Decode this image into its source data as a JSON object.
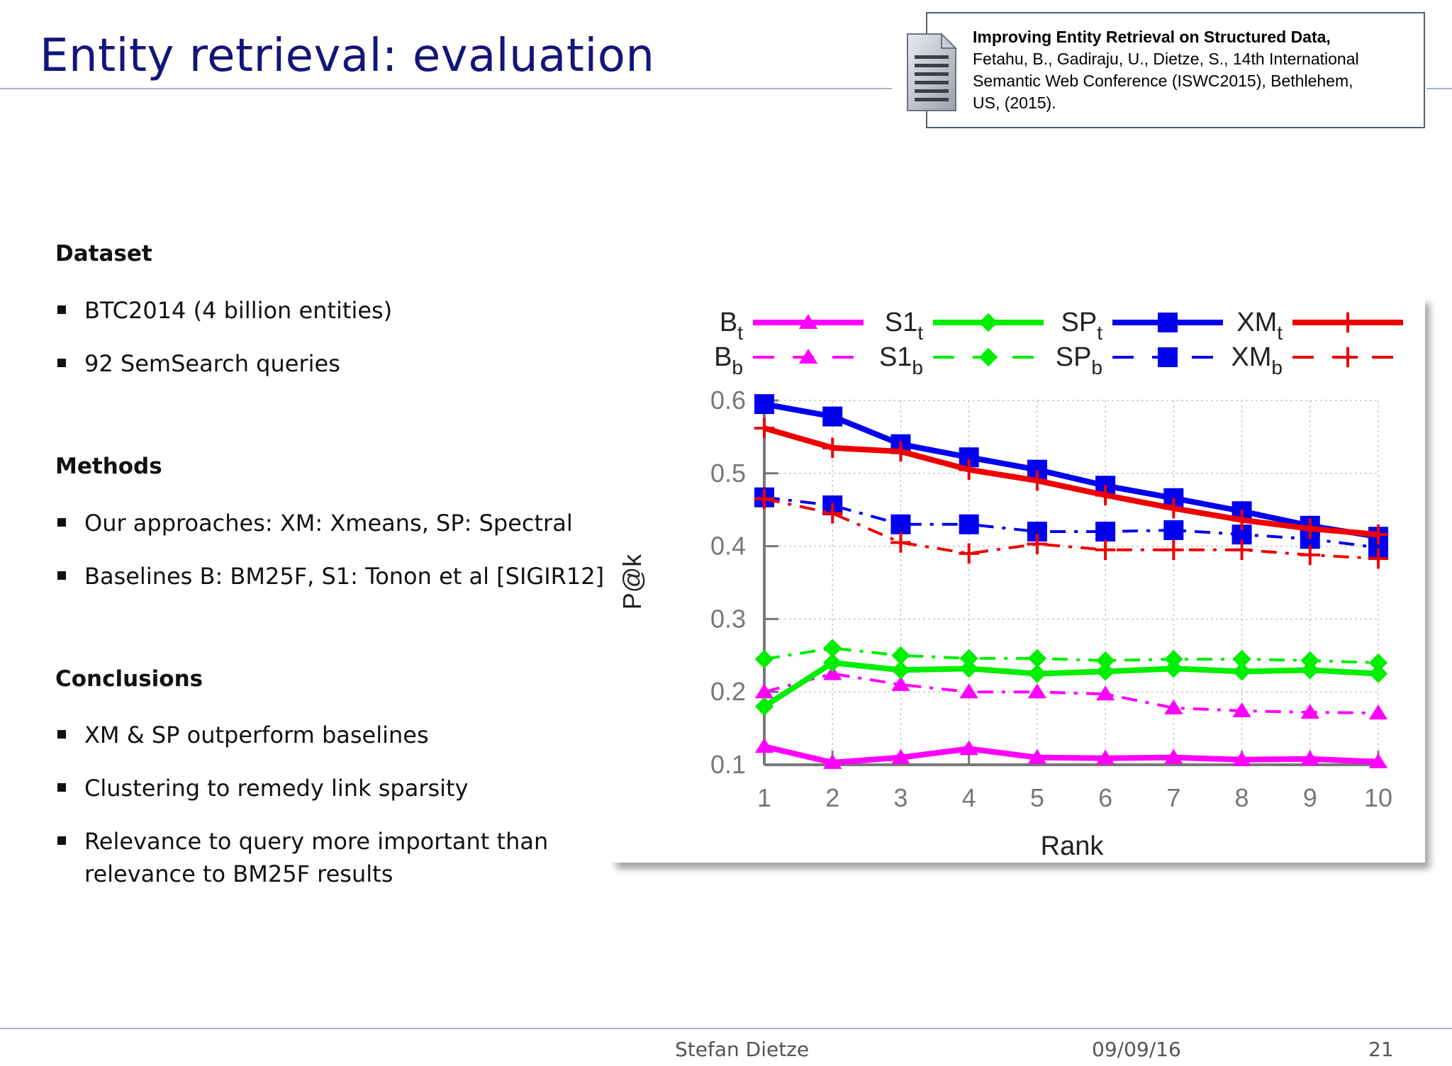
{
  "slide": {
    "title": "Entity retrieval: evaluation",
    "reference": {
      "title": "Improving Entity Retrieval on Structured Data,",
      "authors_line": "Fetahu, B., Gadiraju, U., Dietze, S., 14th International",
      "venue_line": "Semantic Web Conference  (ISWC2015), Bethlehem,",
      "location_line": "US, (2015)."
    },
    "sections": [
      {
        "heading": "Dataset",
        "bullets": [
          "BTC2014 (4 billion entities)",
          "92 SemSearch queries"
        ]
      },
      {
        "heading": "Methods",
        "bullets": [
          "Our approaches: XM: Xmeans, SP: Spectral",
          "Baselines B: BM25F, S1: Tonon et al [SIGIR12]"
        ]
      },
      {
        "heading": "Conclusions",
        "bullets": [
          "XM & SP outperform baselines",
          "Clustering to remedy link sparsity",
          "Relevance to query more important than relevance to BM25F results"
        ]
      }
    ],
    "footer": {
      "author": "Stefan Dietze",
      "date": "09/09/16",
      "page": "21"
    }
  },
  "colors": {
    "title": "#14147a",
    "B": "#ff00ff",
    "S1": "#00ee00",
    "SP": "#0000ee",
    "XM": "#ee0000"
  },
  "chart_data": {
    "type": "line",
    "xlabel": "Rank",
    "ylabel": "P@k",
    "x": [
      1,
      2,
      3,
      4,
      5,
      6,
      7,
      8,
      9,
      10
    ],
    "xlim": [
      1,
      10
    ],
    "ylim": [
      0.1,
      0.6
    ],
    "yticks": [
      0.1,
      0.2,
      0.3,
      0.4,
      0.5,
      0.6
    ],
    "ytick_labels": [
      "0.1",
      "0.2",
      "0.3",
      "0.4",
      "0.5",
      "0.6"
    ],
    "xtick_labels": [
      "1",
      "2",
      "3",
      "4",
      "5",
      "6",
      "7",
      "8",
      "9",
      "10"
    ],
    "grid": true,
    "legend": {
      "columns": 4,
      "placement": "top"
    },
    "series": [
      {
        "name": "Bt",
        "base": "B",
        "sub": "t",
        "color": "#ff00ff",
        "marker": "triangle",
        "style": "solid",
        "values": [
          0.125,
          0.103,
          0.11,
          0.122,
          0.11,
          0.109,
          0.11,
          0.107,
          0.108,
          0.104
        ]
      },
      {
        "name": "S1t",
        "base": "S1",
        "sub": "t",
        "color": "#00ee00",
        "marker": "diamond",
        "style": "solid",
        "values": [
          0.18,
          0.24,
          0.23,
          0.232,
          0.225,
          0.228,
          0.232,
          0.228,
          0.23,
          0.225
        ]
      },
      {
        "name": "SPt",
        "base": "SP",
        "sub": "t",
        "color": "#0000ee",
        "marker": "square",
        "style": "solid",
        "values": [
          0.595,
          0.578,
          0.54,
          0.522,
          0.505,
          0.483,
          0.466,
          0.448,
          0.428,
          0.413
        ]
      },
      {
        "name": "XMt",
        "base": "XM",
        "sub": "t",
        "color": "#ee0000",
        "marker": "plus",
        "style": "solid",
        "values": [
          0.562,
          0.535,
          0.53,
          0.505,
          0.49,
          0.47,
          0.452,
          0.436,
          0.424,
          0.416
        ]
      },
      {
        "name": "Bb",
        "base": "B",
        "sub": "b",
        "color": "#ff00ff",
        "marker": "triangle",
        "style": "dashed",
        "values": [
          0.2,
          0.225,
          0.21,
          0.2,
          0.2,
          0.197,
          0.178,
          0.174,
          0.172,
          0.171
        ]
      },
      {
        "name": "S1b",
        "base": "S1",
        "sub": "b",
        "color": "#00ee00",
        "marker": "diamond",
        "style": "dashed",
        "values": [
          0.245,
          0.26,
          0.25,
          0.246,
          0.246,
          0.243,
          0.245,
          0.245,
          0.243,
          0.24
        ]
      },
      {
        "name": "SPb",
        "base": "SP",
        "sub": "b",
        "color": "#0000ee",
        "marker": "square",
        "style": "dashed",
        "values": [
          0.467,
          0.456,
          0.43,
          0.43,
          0.42,
          0.42,
          0.422,
          0.416,
          0.41,
          0.398
        ]
      },
      {
        "name": "XMb",
        "base": "XM",
        "sub": "b",
        "color": "#ee0000",
        "marker": "plus",
        "style": "dashed",
        "values": [
          0.465,
          0.445,
          0.405,
          0.39,
          0.403,
          0.395,
          0.395,
          0.395,
          0.388,
          0.383
        ]
      }
    ]
  }
}
